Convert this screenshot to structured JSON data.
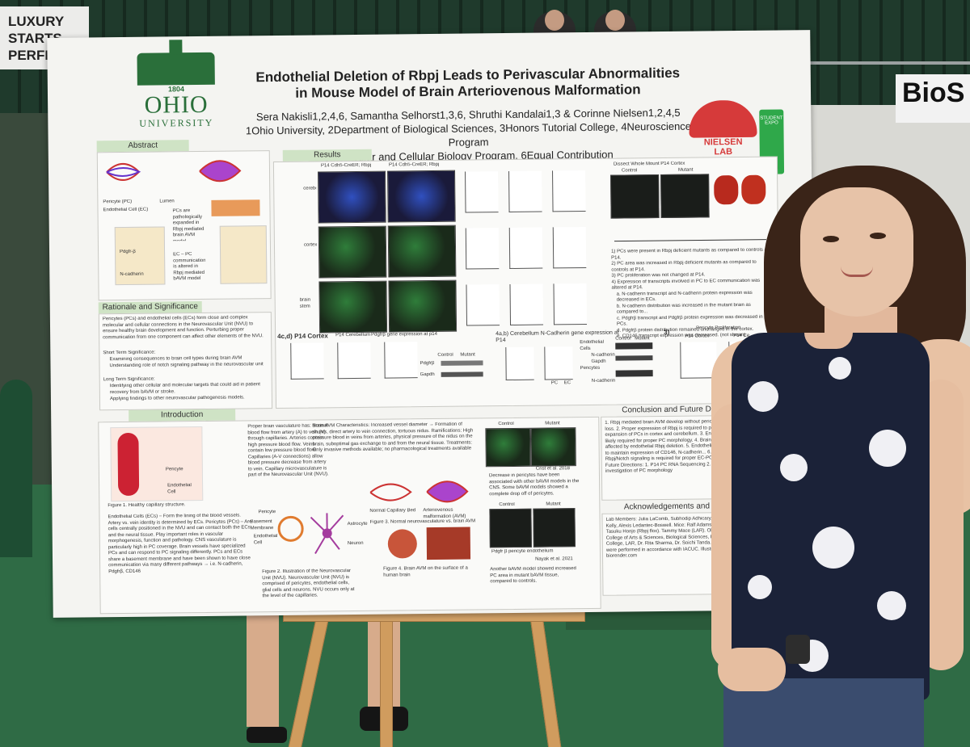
{
  "background": {
    "sign_left": "LUXURY STARTS PERFECT",
    "sign_right": "BioS"
  },
  "poster": {
    "university": {
      "year": "1804",
      "name": "OHIO",
      "subname": "UNIVERSITY"
    },
    "title_line1": "Endothelial Deletion of Rbpj Leads to Perivascular Abnormalities",
    "title_line2": "in Mouse Model of Brain Arteriovenous Malformation",
    "authors_line1": "Sera Nakisli1,2,4,6, Samantha Selhorst1,3,6, Shruthi Kandalai1,3 & Corinne Nielsen1,2,4,5",
    "authors_line2": "1Ohio University, 2Department of Biological Sciences, 3Honors Tutorial College, 4Neuroscience Program",
    "authors_line3": "5Molecular and Cellular Biology Program, 6Equal Contribution",
    "lab_name_1": "NIELSEN",
    "lab_name_2": "LAB",
    "ribbon_text": "STUDENT EXPO",
    "sections": {
      "abstract": "Abstract",
      "results": "Results",
      "rationale": "Rationale and Significance",
      "introduction": "Introduction",
      "conclusion": "Conclusion and Future Directions",
      "acknowledgements": "Acknowledgements and Funding"
    },
    "abstract_labels": {
      "pericyte": "Pericyte (PC)",
      "lumen": "Lumen",
      "endothelial": "Endothelial Cell (EC)",
      "pcs_text": "PCs are pathologically expanded in Rbpj mediated brain AVM model",
      "ec_pc_text": "EC – PC communication is altered in Rbpj mediated bAVM model",
      "pdgfrb": "Pdgfr-β",
      "ncad": "N-cadherin"
    },
    "rationale_text": "Pericytes (PCs) and endothelial cells (ECs) form close and complex molecular and cellular connections in the Neurovascular Unit (NVU) to ensure healthy brain development and function. Perturbing proper communication from one component can affect other elements of the NVU.",
    "short_term_head": "Short Term Significance:",
    "short_term_1": "Examining consequences to brain cell types during brain AVM",
    "short_term_2": "Understanding role of notch signaling pathway in the neurovascular unit",
    "long_term_head": "Long Term Significance:",
    "long_term_1": "Identifying other cellular and molecular targets that could aid in patient recovery from bAVM or stroke.",
    "long_term_2": "Applying findings to other neurovascular pathogenesis models.",
    "results_labels": {
      "p14_cortex_a": "P14 Cdh5-CreER; Rbpj",
      "p14_cortex_b": "P14 Cdh5-CreER; Rbpj",
      "cerebellum": "cerebellum",
      "cortex": "cortex",
      "brain_stem": "brain stem",
      "dissect": "Dissect Whole Mount P14 Cortex",
      "control": "Control",
      "mutant": "Mutant",
      "fig_4cd": "4c,d) P14 Cortex",
      "p14_cerebellum": "P14 Cerebellum",
      "pdgfrb_expr": "Pdgfrβ gene expression at p14",
      "fig_4ab": "4a,b) Cerebellum N-Cadherin gene expression at P14",
      "pericyte_prolif": "Pericyte Proliferation",
      "fig3": "3)",
      "endothelial_cells": "Endothelial Cells",
      "pericytes": "Pericytes",
      "gapdh": "Gapdh",
      "ncadherin": "N-cadherin",
      "pdgfrb": "Pdgfrβ",
      "pc": "PC",
      "ec": "EC",
      "p14_cortex": "P14 Cortex",
      "p14_cer": "P14 Ce"
    },
    "results_findings": [
      "1) PCs were present in Rbpj deficient mutants as compared to controls at P14.",
      "2) PC area was increased in Rbpj deficient mutants as compared to controls at P14.",
      "3) PC proliferation was not changed at P14.",
      "4) Expression of transcripts involved in PC to EC communication was altered at P14.",
      "a. N-cadherin transcript and N-cadherin protein expression was decreased in ECs.",
      "b. N-cadherin distribution was increased in the mutant brain as compared to...",
      "c. Pdgfrβ transcript and Pdgfrβ protein expression was decreased in PCs.",
      "d. Pdgfrβ protein distribution remained unchanged in the cortex.",
      "e. CD146 transcript expression was decreased. (not shown)"
    ],
    "intro_text_1": "Proper brain vasculature has: Normal blood flow from artery (A) to vein (V) through capillaries. Arteries contain high pressure blood flow. Veins contain low pressure blood flow. Capillaries (A-V connections) allow blood pressure decrease from artery to vein. Capillary microvasculature is part of the Neurovascular Unit (NVU).",
    "intro_text_2": "Brain AVM Characteristics: Increased vessel diameter → Formation of shunts, direct artery to vein connection, tortuous nidus. Ramifications: High pressure blood in veins from arteries, physical pressure of the nidus on the brain, suboptimal gas exchange to and from the neural tissue. Treatments: Only invasive methods available; no pharmacological treatments available",
    "intro_bullets": "Endothelial Cells (ECs) – Form the lining of the blood vessels. Artery vs. vein identity is determined by ECs. Pericytes (PCs) – Are cells centrally positioned in the NVU and can contact both the ECs and the neural tissue. Play important roles in vascular morphogenesis, function and pathology. CNS vasculature is particularly high in PC coverage. Brain vessels have specialized PCs and can respond to PC signaling differently. PCs and ECs share a basement membrane and have been shown to have close communication via many different pathways → i.e. N-cadherin, Pdgfrβ, CD146",
    "intro_labels": {
      "fig1": "Figure 1. Healthy capillary structure.",
      "pericyte": "Pericyte",
      "endothelial": "Endothelial Cell",
      "basement": "Basement Membrane",
      "astrocyte": "Astrocyte",
      "neuron": "Neuron",
      "normal_bed": "Normal Capillary Bed",
      "avm": "Arteriovenous malformation (AVM)",
      "fig2": "Figure 2. Illustration of the Neurovascular Unit (NVU). Neurovascular Unit (NVU) is comprised of pericytes, endothelial cells, glial cells and neurons. NVU occurs only at the level of the capillaries.",
      "fig3": "Figure 3. Normal neurovasculature vs. brain AVM",
      "fig4": "Figure 4. Brain AVM on the surface of a human brain",
      "control": "Control",
      "mutant": "Mutant",
      "crist": "Crist et al. 2018",
      "nayak": "Nayak et al. 2021",
      "legend": "Pdgfr β   pericyte   endothelium",
      "decrease_note": "Decrease in pericytes have been associated with other bAVM models in the CNS. Some bAVM models showed a complete drop off of pericytes.",
      "another_note": "Another bAVM model showed increased PC area in mutant bAVM tissue, compared to controls."
    },
    "conclusion_items": "1. Rbpj mediated brain AVM develop without pericyte reduction or loss. 2. Proper expression of Rbpj is required to prevent pathological expansion of PCs in cortex and cerebellum. 3. Endothelial Rbpj is likely required for proper PC morphology. 4. Brain stem PCs are not affected by endothelial Rbpj deletion. 5. Endothelial Rbpj is required to maintain expression of CD146, N-cadherin... 6. Endothelial Rbpj/Notch signaling is required for proper EC-PC communication. Future Directions: 1. P14 PC RNA Sequencing 2. Further investigation of PC morphology",
    "ack_text": "Lab Members: Julia LaComb, Subhodip Adhicary, Kayleigh Fort, Kelly, Alexis Ledantec-Boswell. Mice: Ralf Adams (Cdh5-CreER), Tasuku Honjo (Rbpj flox). Tammy Mace (LAR). Ohio University: College of Arts & Sciences, Biological Sciences, Honors Tutorial College, LAR, Dr. Rita Sharma, Dr. Soichi Tanda. All experiments were performed in accordance with IACUC. Illustrations made in biorender.com"
  }
}
